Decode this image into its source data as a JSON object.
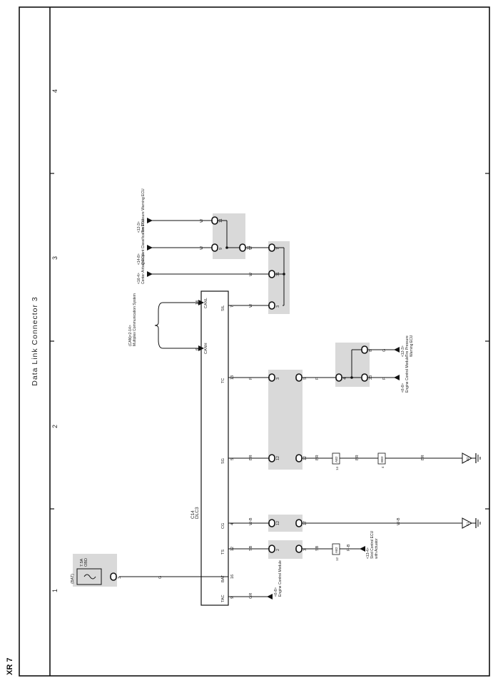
{
  "title": "Data Link Connector 3",
  "corner_mark": "XR 7",
  "zones": [
    "1",
    "2",
    "3",
    "4"
  ],
  "dlc": {
    "code": "C14",
    "name": "DLC3"
  },
  "pins": [
    {
      "id": "bat",
      "num": "16",
      "name": "BAT"
    },
    {
      "id": "tac",
      "num": "9",
      "name": "TAC"
    },
    {
      "id": "ts",
      "num": "12",
      "name": "TS"
    },
    {
      "id": "cg",
      "num": "4",
      "name": "CG"
    },
    {
      "id": "sg",
      "num": "5",
      "name": "SG"
    },
    {
      "id": "tc",
      "num": "13",
      "name": "TC"
    },
    {
      "id": "canh",
      "num": "6",
      "name": "CANH"
    },
    {
      "id": "canl",
      "num": "14",
      "name": "CANL"
    },
    {
      "id": "sil",
      "num": "7",
      "name": "SIL"
    }
  ],
  "wire_colors": {
    "bat": "G",
    "tac": "GR",
    "ts_a": "SB",
    "ts_b": "SB",
    "ts_c": "R-B",
    "cg_a": "W-B",
    "cg_b": "W-B",
    "sg_a": "BR",
    "sg_b": "BR",
    "sg_c": "BR",
    "sg_d": "BR",
    "tc_a": "P",
    "tc_b": "P",
    "tc_c": "P",
    "tc_d": "G",
    "sil_a": "W",
    "sil_b": "W",
    "sil_c": "W",
    "sil_d": "W",
    "sil_e": "W"
  },
  "fuse": {
    "source": "(BAT)",
    "rating": "7.5A",
    "name": "OBD",
    "pin": "3"
  },
  "destinations": {
    "tac": {
      "name": "Engine Control Module",
      "ref": "<6-8>"
    },
    "ts": {
      "name": "Skid Control ECU",
      "name2": "with Actuator",
      "ref": "<13-4>"
    },
    "tc_ecm": {
      "name": "Engine Control Module",
      "ref": "<6-8>"
    },
    "tc_tpw": {
      "name": "Tire Pressure",
      "name2": "Warning ECU",
      "ref": "<12-3>"
    },
    "can": {
      "name": "Multiplex Communication System",
      "ref": "(CAN)<2-14>"
    },
    "airbag": {
      "name": "Center Airbag ECU",
      "ref": "<16-4>"
    },
    "occupant": {
      "name": "Occupant Classification ECU",
      "ref": "<14-8>"
    },
    "tpw": {
      "name": "Tire Pressure Warning ECU",
      "ref": "<12-3>"
    }
  },
  "connectors": {
    "ts_junction": {
      "code": "AB2",
      "pin": "12"
    },
    "sg_junction1": {
      "code": "AB2",
      "pin": "14"
    },
    "sg_junction2": {
      "code": "BB3",
      "pin": "4"
    }
  },
  "grounds": {
    "cg": "C1",
    "sg": "B2"
  },
  "shaded_groups": {
    "ts": [
      "2",
      "3"
    ],
    "cg": [
      "12",
      "17"
    ],
    "sg_tc": [
      "12",
      "12",
      "3",
      "5"
    ],
    "tc_right": [
      "4",
      "23",
      "8"
    ],
    "sil_left": [
      "3",
      "31",
      "7"
    ],
    "sil_right": [
      "9",
      "11",
      "11"
    ]
  }
}
